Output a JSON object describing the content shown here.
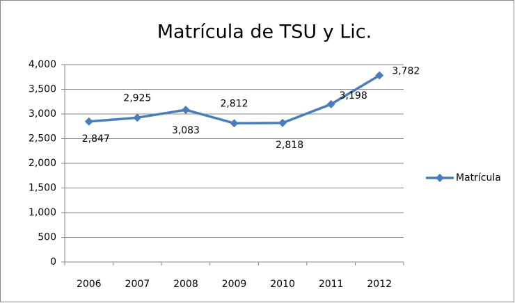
{
  "chart_data": {
    "type": "line",
    "title": "Matrícula de TSU y Lic.",
    "categories": [
      "2006",
      "2007",
      "2008",
      "2009",
      "2010",
      "2011",
      "2012"
    ],
    "series": [
      {
        "name": "Matrícula",
        "color": "#4a7ebb",
        "values": [
          2847,
          2925,
          3083,
          2812,
          2818,
          3198,
          3782
        ],
        "value_labels": [
          "2,847",
          "2,925",
          "3,083",
          "2,812",
          "2,818",
          "3,198",
          "3,782"
        ]
      }
    ],
    "ylim": [
      0,
      4000
    ],
    "yticks": [
      0,
      500,
      {
        "value": 1000,
        "label": "1,000"
      },
      {
        "value": 1500,
        "label": "1,500"
      },
      {
        "value": 2000,
        "label": "2,000"
      },
      {
        "value": 2500,
        "label": "2,500"
      },
      {
        "value": 3000,
        "label": "3,000"
      },
      {
        "value": 3500,
        "label": "3,500"
      },
      {
        "value": 4000,
        "label": "4,000"
      }
    ],
    "grid": true,
    "legend": "right"
  }
}
